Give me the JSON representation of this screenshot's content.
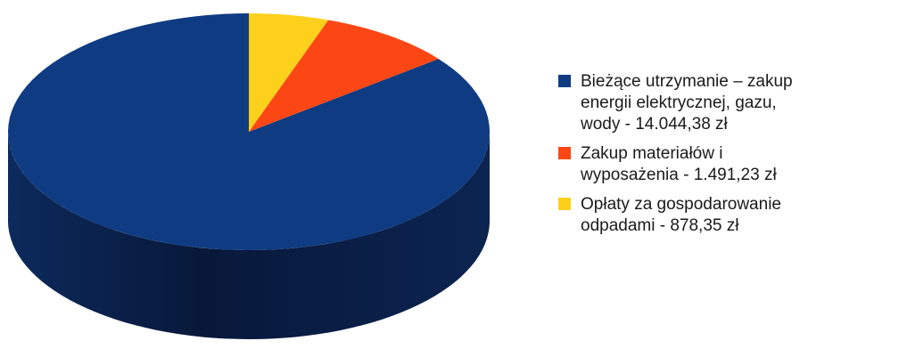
{
  "chart_data": {
    "type": "pie",
    "title": "",
    "categories": [
      "Bieżące utrzymanie – zakup\nenergii elektrycznej, gazu,\nwody - 14.044,38 zł",
      "Zakup materiałów i\nwyposażenia - 1.491,23 zł",
      "Opłaty za gospodarowanie\nodpadami - 878,35 zł"
    ],
    "values": [
      14044.38,
      1491.23,
      878.35
    ],
    "colors": [
      "#0f3b82",
      "#fc4714",
      "#fdd01b"
    ],
    "legend_position": "right",
    "three_d": true
  }
}
